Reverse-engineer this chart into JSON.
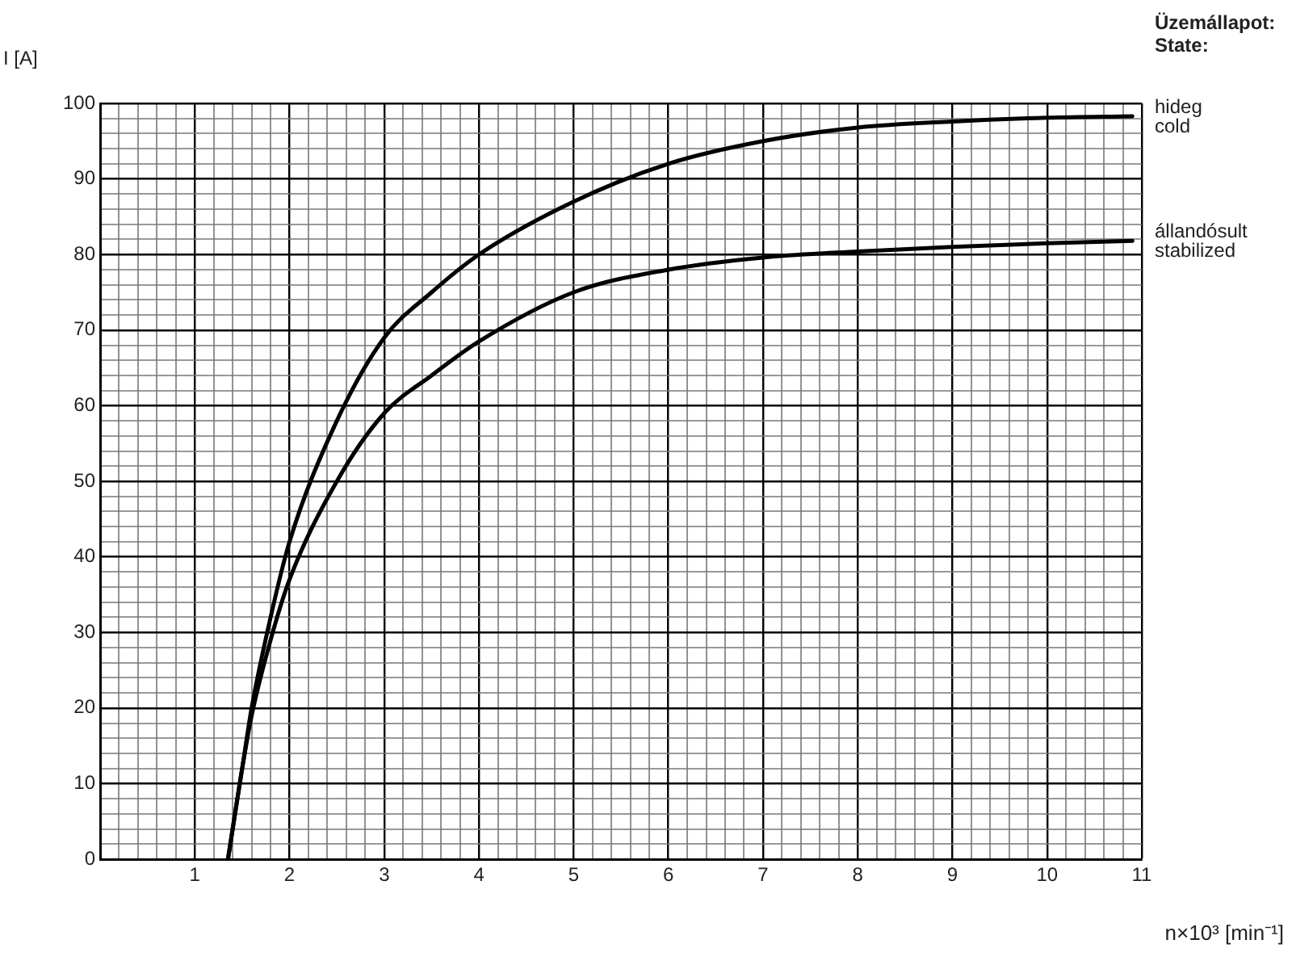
{
  "chart_data": {
    "type": "line",
    "xlabel": "n×10³ [min⁻¹]",
    "ylabel": "I [A]",
    "annotations": [
      "Üzemállapot:",
      "State:"
    ],
    "series": [
      {
        "name": "hideg cold",
        "color": "#000000",
        "x": [
          1.35,
          1.5,
          1.6,
          1.8,
          2,
          2.5,
          3,
          3.5,
          4,
          5,
          6,
          7,
          8,
          9,
          10,
          10.9
        ],
        "values": [
          0,
          12,
          20,
          32,
          42,
          58,
          69,
          75,
          80,
          87,
          92,
          95,
          96.8,
          97.6,
          98.1,
          98.3
        ]
      },
      {
        "name": "állandósult stabilized",
        "color": "#000000",
        "x": [
          1.35,
          1.5,
          1.6,
          1.8,
          2,
          2.5,
          3,
          3.5,
          4,
          5,
          6,
          7,
          8,
          9,
          10,
          10.9
        ],
        "values": [
          0,
          12,
          19,
          29,
          37,
          50,
          59,
          64,
          68.5,
          75,
          78,
          79.6,
          80.4,
          81,
          81.5,
          81.8
        ]
      }
    ],
    "xlim": [
      0,
      11
    ],
    "xticks": [
      {
        "value": 0,
        "label": null
      },
      {
        "value": 0.2,
        "label": null
      },
      {
        "value": 0.4,
        "label": null
      },
      {
        "value": 0.6,
        "label": null
      },
      {
        "value": 0.8,
        "label": null
      },
      1,
      {
        "value": 1.2,
        "label": null
      },
      {
        "value": 1.4,
        "label": null
      },
      {
        "value": 1.6,
        "label": null
      },
      {
        "value": 1.8,
        "label": null
      },
      2,
      {
        "value": 2.2,
        "label": null
      },
      {
        "value": 2.4,
        "label": null
      },
      {
        "value": 2.6,
        "label": null
      },
      {
        "value": 2.8,
        "label": null
      },
      3,
      {
        "value": 3.2,
        "label": null
      },
      {
        "value": 3.4,
        "label": null
      },
      {
        "value": 3.6,
        "label": null
      },
      {
        "value": 3.8,
        "label": null
      },
      4,
      {
        "value": 4.2,
        "label": null
      },
      {
        "value": 4.4,
        "label": null
      },
      {
        "value": 4.6,
        "label": null
      },
      {
        "value": 4.8,
        "label": null
      },
      5,
      {
        "value": 5.2,
        "label": null
      },
      {
        "value": 5.4,
        "label": null
      },
      {
        "value": 5.6,
        "label": null
      },
      {
        "value": 5.8,
        "label": null
      },
      6,
      {
        "value": 6.2,
        "label": null
      },
      {
        "value": 6.4,
        "label": null
      },
      {
        "value": 6.6,
        "label": null
      },
      {
        "value": 6.8,
        "label": null
      },
      7,
      {
        "value": 7.2,
        "label": null
      },
      {
        "value": 7.4,
        "label": null
      },
      {
        "value": 7.6,
        "label": null
      },
      {
        "value": 7.8,
        "label": null
      },
      8,
      {
        "value": 8.2,
        "label": null
      },
      {
        "value": 8.4,
        "label": null
      },
      {
        "value": 8.6,
        "label": null
      },
      {
        "value": 8.8,
        "label": null
      },
      9,
      {
        "value": 9.2,
        "label": null
      },
      {
        "value": 9.4,
        "label": null
      },
      {
        "value": 9.6,
        "label": null
      },
      {
        "value": 9.8,
        "label": null
      },
      10,
      {
        "value": 10.2,
        "label": null
      },
      {
        "value": 10.4,
        "label": null
      },
      {
        "value": 10.6,
        "label": null
      },
      {
        "value": 10.8,
        "label": null
      },
      11
    ],
    "ylim": [
      0,
      100
    ],
    "yticks": [
      0,
      {
        "value": 2,
        "label": null
      },
      {
        "value": 4,
        "label": null
      },
      {
        "value": 6,
        "label": null
      },
      {
        "value": 8,
        "label": null
      },
      10,
      {
        "value": 12,
        "label": null
      },
      {
        "value": 14,
        "label": null
      },
      {
        "value": 16,
        "label": null
      },
      {
        "value": 18,
        "label": null
      },
      20,
      {
        "value": 22,
        "label": null
      },
      {
        "value": 24,
        "label": null
      },
      {
        "value": 26,
        "label": null
      },
      {
        "value": 28,
        "label": null
      },
      30,
      {
        "value": 32,
        "label": null
      },
      {
        "value": 34,
        "label": null
      },
      {
        "value": 36,
        "label": null
      },
      {
        "value": 38,
        "label": null
      },
      40,
      {
        "value": 42,
        "label": null
      },
      {
        "value": 44,
        "label": null
      },
      {
        "value": 46,
        "label": null
      },
      {
        "value": 48,
        "label": null
      },
      50,
      {
        "value": 52,
        "label": null
      },
      {
        "value": 54,
        "label": null
      },
      {
        "value": 56,
        "label": null
      },
      {
        "value": 58,
        "label": null
      },
      60,
      {
        "value": 62,
        "label": null
      },
      {
        "value": 64,
        "label": null
      },
      {
        "value": 66,
        "label": null
      },
      {
        "value": 68,
        "label": null
      },
      70,
      {
        "value": 72,
        "label": null
      },
      {
        "value": 74,
        "label": null
      },
      {
        "value": 76,
        "label": null
      },
      {
        "value": 78,
        "label": null
      },
      80,
      {
        "value": 82,
        "label": null
      },
      {
        "value": 84,
        "label": null
      },
      {
        "value": 86,
        "label": null
      },
      {
        "value": 88,
        "label": null
      },
      90,
      {
        "value": 92,
        "label": null
      },
      {
        "value": 94,
        "label": null
      },
      {
        "value": 96,
        "label": null
      },
      {
        "value": 98,
        "label": null
      },
      100
    ],
    "grid": true,
    "legend": false,
    "marker": "none",
    "line_style": "solid"
  }
}
